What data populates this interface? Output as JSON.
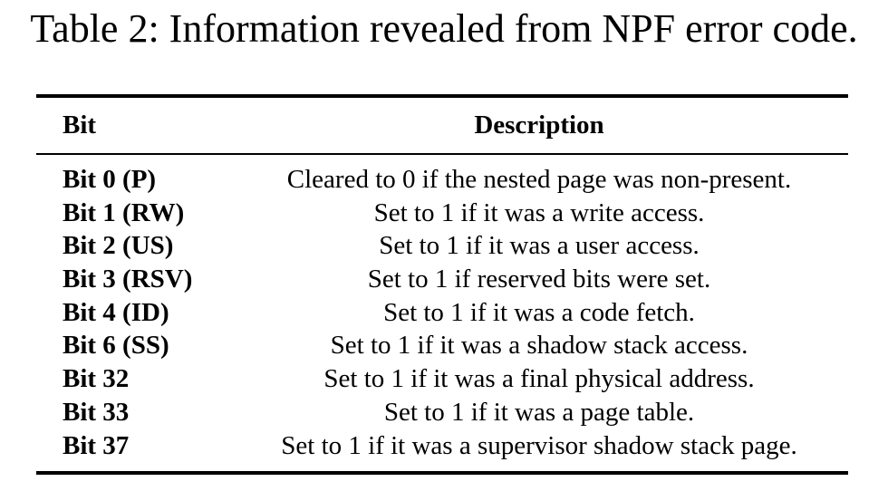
{
  "caption": "Table 2: Information revealed from NPF error code.",
  "table": {
    "headers": {
      "bit": "Bit",
      "description": "Description"
    },
    "rows": [
      {
        "bit": "Bit 0 (P)",
        "description": "Cleared to 0 if the nested page was non-present."
      },
      {
        "bit": "Bit 1 (RW)",
        "description": "Set to 1 if it was a write access."
      },
      {
        "bit": "Bit 2 (US)",
        "description": "Set to 1 if it was a user access."
      },
      {
        "bit": "Bit 3 (RSV)",
        "description": "Set to 1 if reserved bits were set."
      },
      {
        "bit": "Bit 4 (ID)",
        "description": "Set to 1 if it was a code fetch."
      },
      {
        "bit": "Bit 6 (SS)",
        "description": "Set to 1 if it was a shadow stack access."
      },
      {
        "bit": "Bit 32",
        "description": "Set to 1 if it was a final physical address."
      },
      {
        "bit": "Bit 33",
        "description": "Set to 1 if it was a page table."
      },
      {
        "bit": "Bit 37",
        "description": "Set to 1 if it was a supervisor shadow stack page."
      }
    ]
  }
}
